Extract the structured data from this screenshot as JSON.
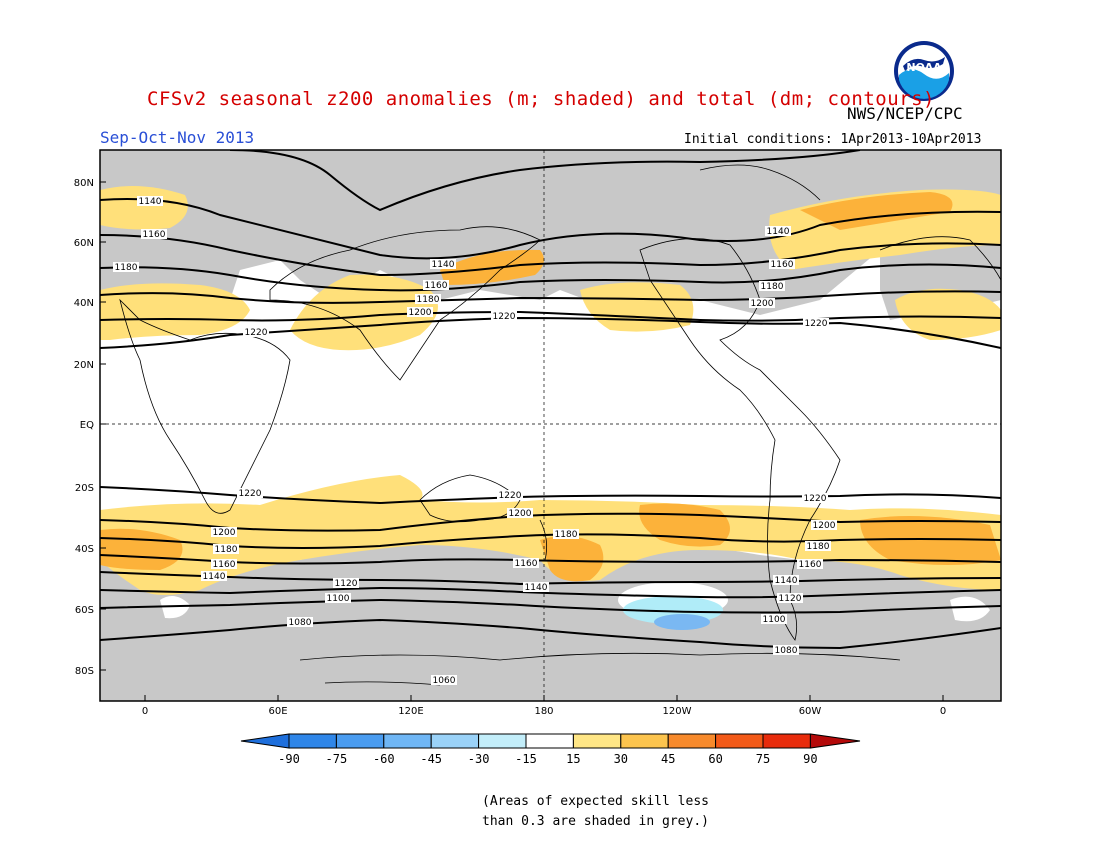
{
  "header": {
    "title": "CFSv2 seasonal z200 anomalies (m; shaded) and total (dm; contours)",
    "agency": "NWS/NCEP/CPC",
    "season": "Sep-Oct-Nov 2013",
    "initial_conditions": "Initial conditions: 1Apr2013-10Apr2013",
    "logo_text": "NOAA"
  },
  "map": {
    "lat_labels": [
      "80N",
      "60N",
      "40N",
      "20N",
      "EQ",
      "20S",
      "40S",
      "60S",
      "80S"
    ],
    "lon_labels": [
      "0",
      "60E",
      "120E",
      "180",
      "120W",
      "60W",
      "0"
    ],
    "contour_labels": [
      "1060",
      "1080",
      "1100",
      "1120",
      "1140",
      "1160",
      "1180",
      "1200",
      "1220"
    ],
    "colors": {
      "grey_low_skill": "#c8c8c8",
      "light_yellow": "#ffe07a",
      "orange": "#fcb23a",
      "dark_orange": "#f7902a",
      "light_blue": "#b0ecf8",
      "blue": "#7ab8f2"
    }
  },
  "colorbar": {
    "ticks": [
      "-90",
      "-75",
      "-60",
      "-45",
      "-30",
      "-15",
      "15",
      "30",
      "45",
      "60",
      "75",
      "90"
    ],
    "colors": [
      "#1e6fdc",
      "#2f86e8",
      "#4a9cf0",
      "#6fb6f5",
      "#9ad2f8",
      "#c3eefa",
      "#ffffff",
      "#ffe686",
      "#fcc44e",
      "#f78a2c",
      "#f35a18",
      "#e82c0c",
      "#b40a0a"
    ]
  },
  "note": {
    "line1": "(Areas of expected skill less",
    "line2": "than 0.3 are shaded in grey.)"
  }
}
